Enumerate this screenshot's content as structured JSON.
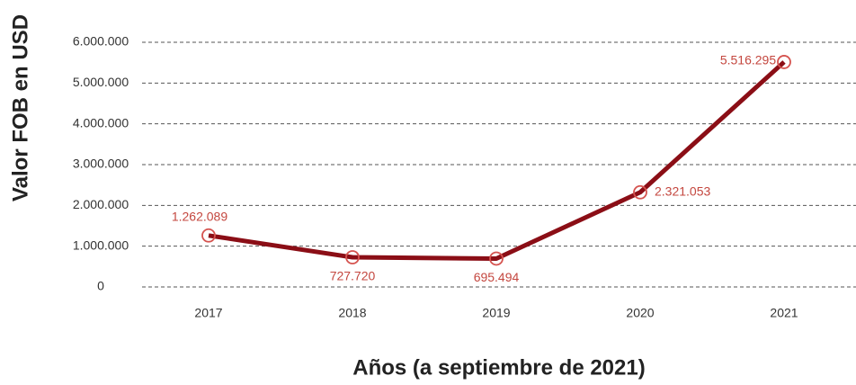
{
  "chart_data": {
    "type": "line",
    "x_label": "Años (a septiembre de 2021)",
    "y_label": "Valor FOB en USD",
    "categories": [
      "2017",
      "2018",
      "2019",
      "2020",
      "2021"
    ],
    "series": [
      {
        "name": "Valor FOB en USD",
        "color": "#8b0e16",
        "marker_color": "#d5534f",
        "values": [
          1262089,
          727720,
          695494,
          2321053,
          5516295
        ],
        "value_labels": [
          "1.262.089",
          "727.720",
          "695.494",
          "2.321.053",
          "5.516.295"
        ]
      }
    ],
    "ylim": [
      0,
      6000000
    ],
    "yticks": [
      0,
      {
        "value": 1000000,
        "label": "1.000.000"
      },
      {
        "value": 2000000,
        "label": "2.000.000"
      },
      {
        "value": 3000000,
        "label": "3.000.000"
      },
      {
        "value": 4000000,
        "label": "4.000.000"
      },
      {
        "value": 5000000,
        "label": "5.000.000"
      },
      {
        "value": 6000000,
        "label": "6.000.000"
      }
    ],
    "grid": true
  }
}
